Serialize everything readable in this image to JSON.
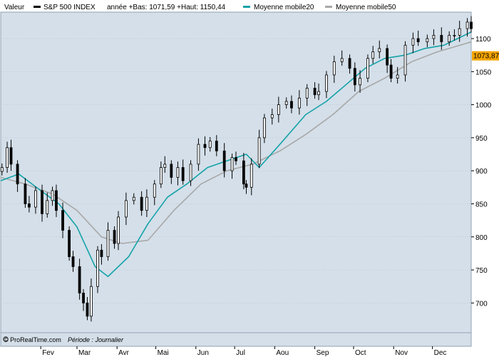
{
  "legend": {
    "valeur_label": "Valeur",
    "series_label": "S&P 500 INDEX",
    "range_text": "année +Bas: 1071,59 +Haut: 1150,44",
    "ma20_label": "Moyenne mobile20",
    "ma50_label": "Moyenne mobile50"
  },
  "watermark": {
    "brand": "© ProRealTime.com",
    "period": "Période : Journalier"
  },
  "current_price_label": "1073,87",
  "colors": {
    "plot_bg": "#d4dfe9",
    "candle": "#000000",
    "ma20": "#13a3a8",
    "ma50": "#a8a8a8",
    "price_tag": "#f5a500",
    "grid": "#a9b9c8"
  },
  "chart_data": {
    "type": "line",
    "style": "candlestick",
    "title": "",
    "xlabel": "",
    "ylabel": "",
    "ylim": [
      655,
      1140
    ],
    "y_ticks": [
      700,
      750,
      800,
      850,
      900,
      950,
      1000,
      1050,
      1100
    ],
    "y_tick_labels": [
      "700",
      "750",
      "800",
      "850",
      "900",
      "950",
      "1000",
      "1050",
      "1100"
    ],
    "x_range": [
      "2009-01-01",
      "2009-12-31"
    ],
    "x_ticks": [
      "2009-02-01",
      "2009-03-01",
      "2009-04-01",
      "2009-05-01",
      "2009-06-01",
      "2009-07-01",
      "2009-08-01",
      "2009-09-01",
      "2009-10-01",
      "2009-11-01",
      "2009-12-01"
    ],
    "x_tick_labels": [
      "Fev",
      "Mar",
      "Avr",
      "Mai",
      "Jun",
      "Jul",
      "Aou",
      "Sep",
      "Oct",
      "Nov",
      "Dec"
    ],
    "grid": true,
    "legend_position": "top",
    "series": [
      {
        "name": "S&P 500 INDEX",
        "x": [
          "2009-01-02",
          "2009-01-06",
          "2009-01-09",
          "2009-01-14",
          "2009-01-20",
          "2009-01-23",
          "2009-01-28",
          "2009-02-02",
          "2009-02-06",
          "2009-02-10",
          "2009-02-13",
          "2009-02-18",
          "2009-02-23",
          "2009-02-26",
          "2009-03-03",
          "2009-03-06",
          "2009-03-09",
          "2009-03-12",
          "2009-03-17",
          "2009-03-20",
          "2009-03-25",
          "2009-03-30",
          "2009-04-02",
          "2009-04-08",
          "2009-04-14",
          "2009-04-20",
          "2009-04-24",
          "2009-04-30",
          "2009-05-05",
          "2009-05-08",
          "2009-05-13",
          "2009-05-18",
          "2009-05-22",
          "2009-05-28",
          "2009-06-03",
          "2009-06-08",
          "2009-06-12",
          "2009-06-17",
          "2009-06-23",
          "2009-06-29",
          "2009-07-02",
          "2009-07-08",
          "2009-07-10",
          "2009-07-14",
          "2009-07-20",
          "2009-07-24",
          "2009-07-30",
          "2009-08-04",
          "2009-08-10",
          "2009-08-14",
          "2009-08-20",
          "2009-08-26",
          "2009-09-01",
          "2009-09-04",
          "2009-09-10",
          "2009-09-16",
          "2009-09-22",
          "2009-09-28",
          "2009-10-02",
          "2009-10-06",
          "2009-10-12",
          "2009-10-16",
          "2009-10-21",
          "2009-10-27",
          "2009-10-30",
          "2009-11-04",
          "2009-11-10",
          "2009-11-16",
          "2009-11-20",
          "2009-11-27",
          "2009-12-02",
          "2009-12-08",
          "2009-12-14",
          "2009-12-18",
          "2009-12-22",
          "2009-12-28",
          "2009-12-31"
        ],
        "values": [
          905,
          935,
          910,
          880,
          850,
          845,
          870,
          835,
          855,
          870,
          840,
          810,
          770,
          755,
          715,
          700,
          680,
          725,
          780,
          770,
          810,
          790,
          830,
          855,
          860,
          840,
          860,
          880,
          905,
          910,
          890,
          905,
          885,
          910,
          940,
          935,
          945,
          930,
          900,
          920,
          915,
          880,
          875,
          910,
          950,
          980,
          985,
          1000,
          1005,
          995,
          1010,
          1025,
          1015,
          1020,
          1045,
          1065,
          1070,
          1055,
          1030,
          1040,
          1070,
          1080,
          1085,
          1060,
          1040,
          1045,
          1090,
          1100,
          1095,
          1100,
          1105,
          1095,
          1105,
          1105,
          1115,
          1125,
          1115
        ]
      },
      {
        "name": "Moyenne mobile20",
        "x": [
          "2009-01-01",
          "2009-01-15",
          "2009-02-01",
          "2009-02-15",
          "2009-03-01",
          "2009-03-15",
          "2009-03-25",
          "2009-04-10",
          "2009-04-25",
          "2009-05-10",
          "2009-05-25",
          "2009-06-10",
          "2009-06-25",
          "2009-07-10",
          "2009-07-20",
          "2009-08-05",
          "2009-08-25",
          "2009-09-10",
          "2009-09-25",
          "2009-10-10",
          "2009-10-25",
          "2009-11-10",
          "2009-11-25",
          "2009-12-10",
          "2009-12-31"
        ],
        "values": [
          885,
          895,
          870,
          850,
          815,
          755,
          740,
          770,
          820,
          860,
          880,
          905,
          915,
          925,
          905,
          940,
          985,
          1005,
          1030,
          1055,
          1070,
          1075,
          1085,
          1090,
          1110
        ]
      },
      {
        "name": "Moyenne mobile50",
        "x": [
          "2009-01-01",
          "2009-01-20",
          "2009-02-10",
          "2009-03-01",
          "2009-03-20",
          "2009-04-05",
          "2009-04-25",
          "2009-05-15",
          "2009-06-05",
          "2009-06-25",
          "2009-07-15",
          "2009-08-05",
          "2009-08-25",
          "2009-09-15",
          "2009-10-05",
          "2009-10-25",
          "2009-11-15",
          "2009-12-05",
          "2009-12-31"
        ],
        "values": [
          890,
          880,
          865,
          840,
          800,
          790,
          795,
          840,
          880,
          900,
          910,
          930,
          955,
          985,
          1020,
          1040,
          1065,
          1080,
          1095
        ]
      }
    ],
    "current_value": 1073.87
  }
}
